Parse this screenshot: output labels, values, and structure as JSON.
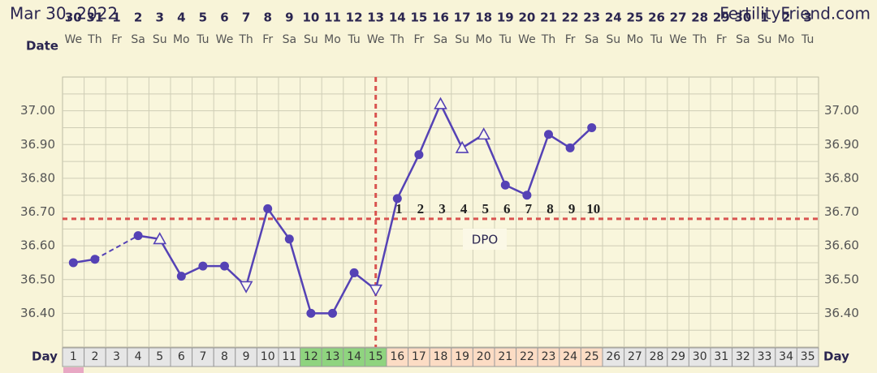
{
  "header": {
    "date": "Mar 30, 2022",
    "site": "FertilityFriend.com"
  },
  "chart_data": {
    "type": "line",
    "date_axis_label": "Date",
    "day_axis_label": "Day",
    "dpo_label": "DPO",
    "categories": [
      "1",
      "2",
      "3",
      "4",
      "5",
      "6",
      "7",
      "8",
      "9",
      "10",
      "11",
      "12",
      "13",
      "14",
      "15",
      "16",
      "17",
      "18",
      "19",
      "20",
      "21",
      "22",
      "23",
      "24",
      "25",
      "26",
      "27",
      "28",
      "29",
      "30",
      "31",
      "32",
      "33",
      "34",
      "35"
    ],
    "dates": [
      "30",
      "31",
      "1",
      "2",
      "3",
      "4",
      "5",
      "6",
      "7",
      "8",
      "9",
      "10",
      "11",
      "12",
      "13",
      "14",
      "15",
      "16",
      "17",
      "18",
      "19",
      "20",
      "21",
      "22",
      "23",
      "24",
      "25",
      "26",
      "27",
      "28",
      "29",
      "30",
      "1",
      "2",
      "3"
    ],
    "weekdays": [
      "We",
      "Th",
      "Fr",
      "Sa",
      "Su",
      "Mo",
      "Tu",
      "We",
      "Th",
      "Fr",
      "Sa",
      "Su",
      "Mo",
      "Tu",
      "We",
      "Th",
      "Fr",
      "Sa",
      "Su",
      "Mo",
      "Tu",
      "We",
      "Th",
      "Fr",
      "Sa",
      "Su",
      "Mo",
      "Tu",
      "We",
      "Th",
      "Fr",
      "Sa",
      "Su",
      "Mo",
      "Tu"
    ],
    "values": [
      36.55,
      36.56,
      null,
      36.63,
      36.62,
      36.51,
      36.54,
      36.54,
      36.48,
      36.71,
      36.62,
      36.4,
      36.4,
      36.52,
      36.47,
      36.74,
      36.87,
      37.02,
      36.89,
      36.93,
      36.78,
      36.75,
      36.93,
      36.89,
      36.95,
      null,
      null,
      null,
      null,
      null,
      null,
      null,
      null,
      null,
      null
    ],
    "markers": [
      "circle",
      "circle",
      null,
      "circle",
      "triangle-up",
      "circle",
      "circle",
      "circle",
      "triangle-down",
      "circle",
      "circle",
      "circle",
      "circle",
      "circle",
      "triangle-down",
      "circle",
      "circle",
      "triangle-up",
      "triangle-up",
      "triangle-up",
      "circle",
      "circle",
      "circle",
      "circle",
      "circle",
      null,
      null,
      null,
      null,
      null,
      null,
      null,
      null,
      null,
      null
    ],
    "color": "#5542b5",
    "ylim": [
      36.3,
      37.1
    ],
    "yticks": [
      {
        "value": 36.4,
        "label": "36.40"
      },
      {
        "value": 36.5,
        "label": "36.50"
      },
      {
        "value": 36.6,
        "label": "36.60"
      },
      {
        "value": 36.7,
        "label": "36.70"
      },
      {
        "value": 36.8,
        "label": "36.80"
      },
      {
        "value": 36.9,
        "label": "36.90"
      },
      {
        "value": 37.0,
        "label": "37.00"
      }
    ],
    "ygrid": [
      36.35,
      36.4,
      36.45,
      36.5,
      36.55,
      36.6,
      36.65,
      36.7,
      36.75,
      36.8,
      36.85,
      36.9,
      36.95,
      37.0,
      37.05
    ],
    "coverline": 36.68,
    "ovulation_day": 15,
    "reference_color": "#d9534f",
    "dpo": [
      null,
      null,
      null,
      null,
      null,
      null,
      null,
      null,
      null,
      null,
      null,
      null,
      null,
      null,
      null,
      "1",
      "2",
      "3",
      "4",
      "5",
      "6",
      "7",
      "8",
      "9",
      "10",
      null,
      null,
      null,
      null,
      null,
      null,
      null,
      null,
      null,
      null
    ],
    "cell_colors": [
      "#e6e6e6",
      "#e6e6e6",
      "#e6e6e6",
      "#e6e6e6",
      "#e6e6e6",
      "#e6e6e6",
      "#e6e6e6",
      "#e6e6e6",
      "#e6e6e6",
      "#e6e6e6",
      "#e6e6e6",
      "#8fd47f",
      "#8fd47f",
      "#8fd47f",
      "#8fd47f",
      "#fcdcc4",
      "#fcdcc4",
      "#fcdcc4",
      "#fcdcc4",
      "#fcdcc4",
      "#fcdcc4",
      "#fcdcc4",
      "#fcdcc4",
      "#fcdcc4",
      "#fcdcc4",
      "#e6e6e6",
      "#e6e6e6",
      "#e6e6e6",
      "#e6e6e6",
      "#e6e6e6",
      "#e6e6e6",
      "#e6e6e6",
      "#e6e6e6",
      "#e6e6e6",
      "#e6e6e6"
    ]
  }
}
